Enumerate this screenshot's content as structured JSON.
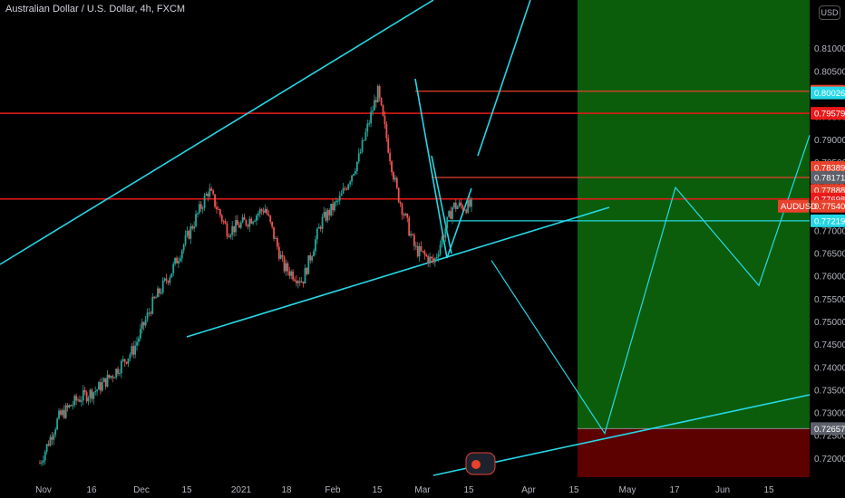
{
  "header": {
    "title": "Australian Dollar / U.S. Dollar, 4h, FXCM",
    "currency_button": "USD"
  },
  "colors": {
    "background": "#000000",
    "up_candle": "#26a69a",
    "down_candle": "#ef5350",
    "trendline": "#26d7e6",
    "resistance": "#e81a1a",
    "profit_zone": "#0b5d0b",
    "loss_zone": "#5c0000"
  },
  "chart_data": {
    "type": "candlestick",
    "symbol": "AUDUSD",
    "timeframe": "4h",
    "ylim": [
      0.7165,
      0.8165
    ],
    "y_ticks": [
      "0.81000",
      "0.80500",
      "0.80000",
      "0.79500",
      "0.79000",
      "0.78500",
      "0.78000",
      "0.77500",
      "0.77000",
      "0.76500",
      "0.76000",
      "0.75500",
      "0.75000",
      "0.74500",
      "0.74000",
      "0.73500",
      "0.73000",
      "0.72500",
      "0.72000"
    ],
    "x_ticks": [
      "Nov",
      "16",
      "Dec",
      "15",
      "2021",
      "18",
      "Feb",
      "15",
      "Mar",
      "15",
      "Apr",
      "15",
      "May",
      "17",
      "Jun",
      "15"
    ],
    "price_path": [
      {
        "date": "Nov",
        "close": 0.719
      },
      {
        "date": "Nov 10",
        "close": 0.729
      },
      {
        "date": "Nov 16",
        "close": 0.733
      },
      {
        "date": "Nov 24",
        "close": 0.735
      },
      {
        "date": "Dec 1",
        "close": 0.739
      },
      {
        "date": "Dec 8",
        "close": 0.744
      },
      {
        "date": "Dec 15",
        "close": 0.754
      },
      {
        "date": "Dec 22",
        "close": 0.761
      },
      {
        "date": "Dec 31",
        "close": 0.77
      },
      {
        "date": "Jan 6",
        "close": 0.779
      },
      {
        "date": "Jan 12",
        "close": 0.77
      },
      {
        "date": "Jan 18",
        "close": 0.772
      },
      {
        "date": "Jan 25",
        "close": 0.775
      },
      {
        "date": "Feb 1",
        "close": 0.762
      },
      {
        "date": "Feb 5",
        "close": 0.759
      },
      {
        "date": "Feb 10",
        "close": 0.772
      },
      {
        "date": "Feb 15",
        "close": 0.777
      },
      {
        "date": "Feb 20",
        "close": 0.786
      },
      {
        "date": "Feb 25",
        "close": 0.8006
      },
      {
        "date": "Mar 2",
        "close": 0.779
      },
      {
        "date": "Mar 5",
        "close": 0.766
      },
      {
        "date": "Mar 9",
        "close": 0.763
      },
      {
        "date": "Mar 12",
        "close": 0.7754
      },
      {
        "date": "Mar 15",
        "close": 0.7754
      }
    ],
    "price_labels": [
      {
        "value": "0.80064",
        "color": "#e8412c"
      },
      {
        "value": "0.80026",
        "color": "#26d7e6"
      },
      {
        "value": "0.79579",
        "color": "#e81a1a"
      },
      {
        "value": "0.78389",
        "color": "#e8412c"
      },
      {
        "value": "0.78171",
        "color": "#5d606b"
      },
      {
        "value": "0.77888",
        "color": "#e8412c"
      },
      {
        "value": "0.77698",
        "color": "#e81a1a"
      },
      {
        "value": "0.77540",
        "color": "#e8412c"
      },
      {
        "value": "0.77219",
        "color": "#26d7e6"
      },
      {
        "value": "0.72657",
        "color": "#5d606b"
      }
    ],
    "symbol_tag": "AUDUSD",
    "horizontal_levels": [
      0.79579,
      0.77698
    ],
    "position_tool": {
      "entry": 0.72657,
      "target": 0.8165,
      "stop": 0.7165
    },
    "projection_path_prices": [
      0.7635,
      0.7255,
      0.7795,
      0.758,
      0.791
    ]
  }
}
